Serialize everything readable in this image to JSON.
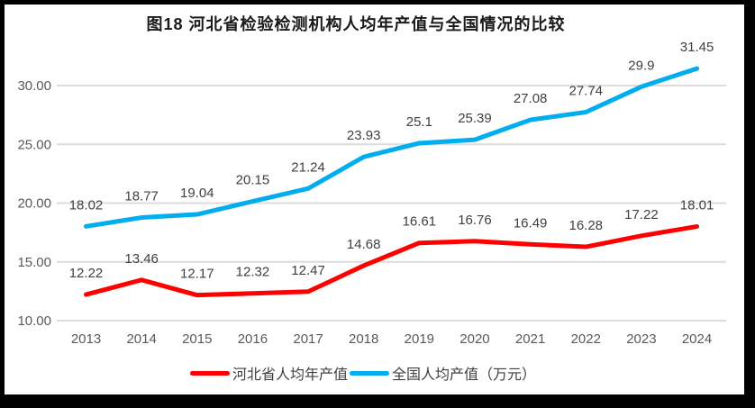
{
  "title": "图18  河北省检验检测机构人均年产值与全国情况的比较",
  "colors": {
    "frame_border": "#000000",
    "grid_line": "#DCDCDC",
    "tick_label": "#595959",
    "data_label": "#404040",
    "title_text": "#1A1A1A",
    "hebei_red": "#FE0000",
    "national_blue": "#00AEEF"
  },
  "chart_data": {
    "type": "line",
    "title": "图18  河北省检验检测机构人均年产值与全国情况的比较",
    "categories": [
      "2013",
      "2014",
      "2015",
      "2016",
      "2017",
      "2018",
      "2019",
      "2020",
      "2021",
      "2022",
      "2023",
      "2024"
    ],
    "series": [
      {
        "name": "河北省人均年产值",
        "color": "#FE0000",
        "values": [
          12.22,
          13.46,
          12.17,
          12.32,
          12.47,
          14.68,
          16.61,
          16.76,
          16.49,
          16.28,
          17.22,
          18.01
        ],
        "point_labels": [
          "12.22",
          "13.46",
          "12.17",
          "12.32",
          "12.47",
          "14.68",
          "16.61",
          "16.76",
          "16.49",
          "16.28",
          "17.22",
          "18.01"
        ]
      },
      {
        "name": "全国人均产值（万元）",
        "color": "#00AEEF",
        "values": [
          18.02,
          18.77,
          19.04,
          20.15,
          21.24,
          23.93,
          25.1,
          25.39,
          27.08,
          27.74,
          29.9,
          31.45
        ],
        "point_labels": [
          "18.02",
          "18.77",
          "19.04",
          "20.15",
          "21.24",
          "23.93",
          "25.1",
          "25.39",
          "27.08",
          "27.74",
          "29.9",
          "31.45"
        ]
      }
    ],
    "y_axis": {
      "min": 10,
      "max": 30,
      "tick_step": 5,
      "tick_labels": [
        "10.00",
        "15.00",
        "20.00",
        "25.00",
        "30.00"
      ]
    },
    "xlabel": "",
    "ylabel": "",
    "grid": true,
    "legend_position": "bottom",
    "data_labels": "above"
  }
}
